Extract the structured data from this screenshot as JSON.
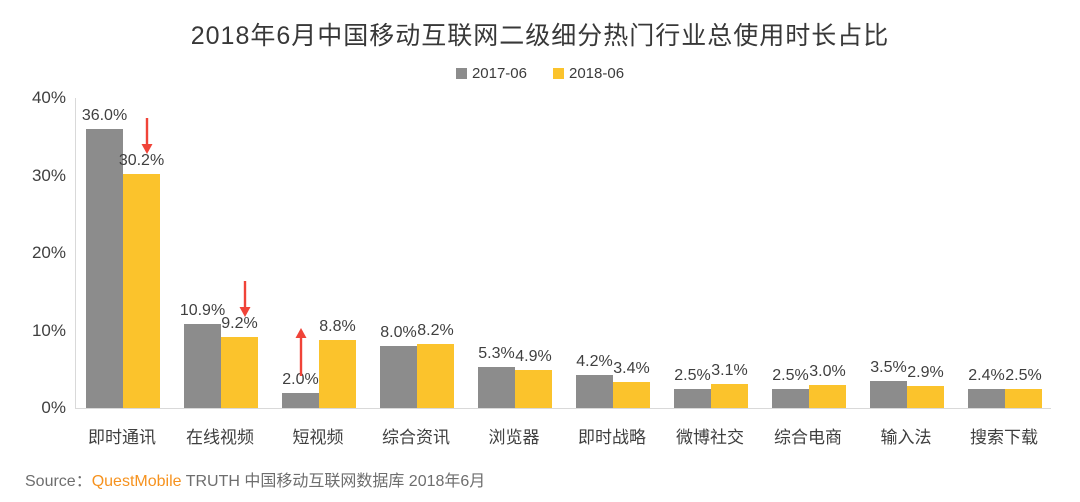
{
  "chart_data": {
    "type": "bar",
    "title": "2018年6月中国移动互联网二级细分热门行业总使用时长占比",
    "categories": [
      "即时通讯",
      "在线视频",
      "短视频",
      "综合资讯",
      "浏览器",
      "即时战略",
      "微博社交",
      "综合电商",
      "输入法",
      "搜索下载"
    ],
    "series": [
      {
        "name": "2017-06",
        "color": "#8c8c8c",
        "values": [
          36.0,
          10.9,
          2.0,
          8.0,
          5.3,
          4.2,
          2.5,
          2.5,
          3.5,
          2.4
        ]
      },
      {
        "name": "2018-06",
        "color": "#fbc32c",
        "values": [
          30.2,
          9.2,
          8.8,
          8.2,
          4.9,
          3.4,
          3.1,
          3.0,
          2.9,
          2.5
        ]
      }
    ],
    "value_label_suffix": "%",
    "trend_arrows": [
      {
        "category": "即时通讯",
        "direction": "down"
      },
      {
        "category": "在线视频",
        "direction": "down"
      },
      {
        "category": "短视频",
        "direction": "up"
      }
    ],
    "arrow_color": "#f04338",
    "xlabel": "",
    "ylabel": "",
    "ylim": [
      0,
      40
    ],
    "yticks": [
      {
        "value": 0,
        "label": "0%"
      },
      {
        "value": 10,
        "label": "10%"
      },
      {
        "value": 20,
        "label": "20%"
      },
      {
        "value": 30,
        "label": "30%"
      },
      {
        "value": 40,
        "label": "40%"
      }
    ],
    "grid": false,
    "legend_position": "top-center",
    "axis_color": "#d9d9d9"
  },
  "source": {
    "prefix": "Source：",
    "brand": "QuestMobile",
    "suffix": " TRUTH 中国移动互联网数据库 2018年6月",
    "brand_color": "#f6921e"
  }
}
